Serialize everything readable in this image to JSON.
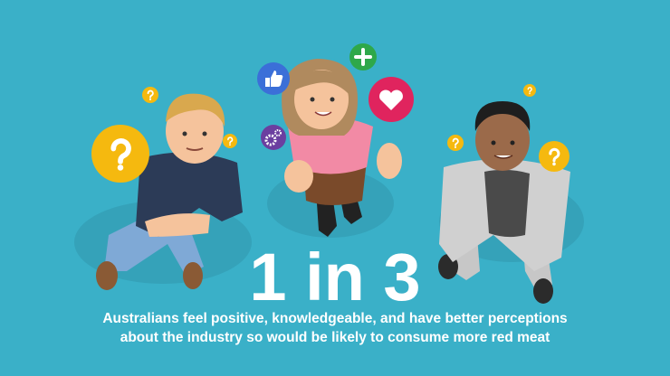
{
  "headline": "1 in 3",
  "caption": [
    "Australians feel positive, knowledgeable, and have better perceptions",
    "about the industry so would be likely to consume more red meat"
  ]
}
